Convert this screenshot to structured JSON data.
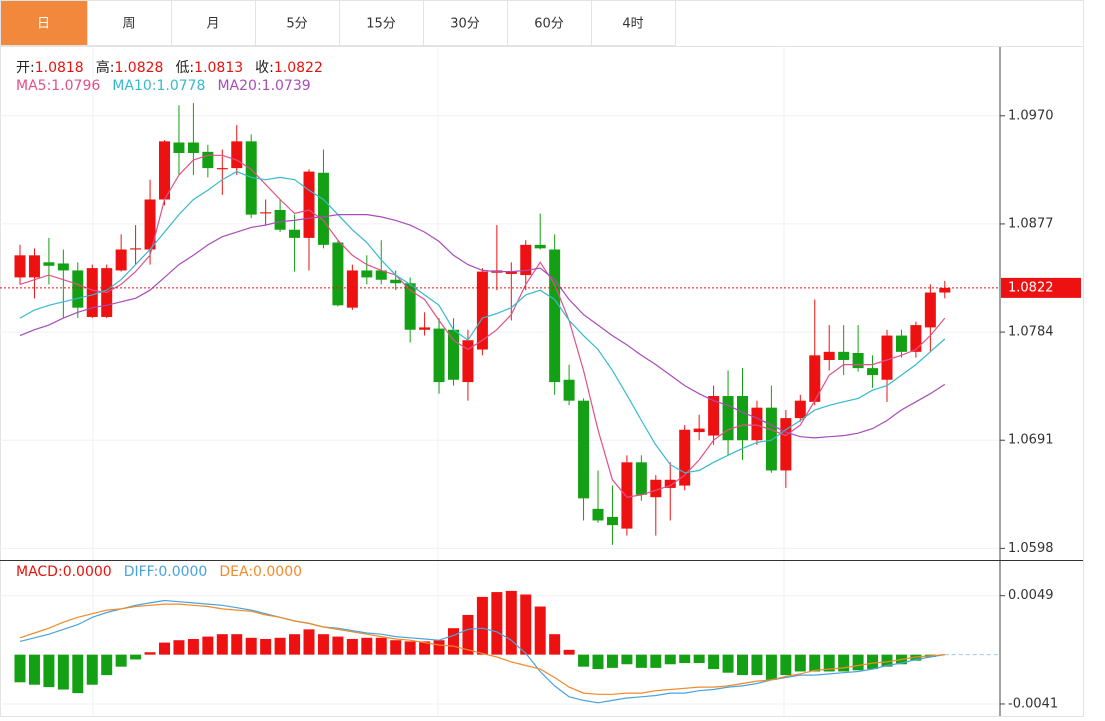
{
  "tabs": [
    {
      "label": "日",
      "active": true
    },
    {
      "label": "周",
      "active": false
    },
    {
      "label": "月",
      "active": false
    },
    {
      "label": "5分",
      "active": false
    },
    {
      "label": "15分",
      "active": false
    },
    {
      "label": "30分",
      "active": false
    },
    {
      "label": "60分",
      "active": false
    },
    {
      "label": "4时",
      "active": false
    }
  ],
  "chart_data": [
    {
      "type": "candlestick",
      "ohlc_labels": [
        "开:",
        "高:",
        "低:",
        "收:"
      ],
      "up_color": "#ee1111",
      "down_color": "#14a014",
      "label_color": "#e8120c",
      "open": [
        1.0831,
        1.0831,
        1.0844,
        1.0843,
        1.0837,
        1.0797,
        1.0797,
        1.0837,
        1.0855,
        1.0855,
        1.0898,
        1.0947,
        1.0947,
        1.0939,
        1.0924,
        1.0925,
        1.0948,
        1.0886,
        1.0889,
        1.0872,
        1.0865,
        1.0921,
        1.0861,
        1.0805,
        1.0837,
        1.0837,
        1.0829,
        1.0826,
        1.0786,
        1.0787,
        1.0786,
        1.0741,
        1.0769,
        1.0835,
        1.0834,
        1.0833,
        1.0859,
        1.0855,
        1.0743,
        1.0725,
        1.0632,
        1.0625,
        1.0615,
        1.0672,
        1.0642,
        1.065,
        1.0652,
        1.0698,
        1.0695,
        1.0729,
        1.0729,
        1.0691,
        1.0719,
        1.0665,
        1.071,
        1.0724,
        1.076,
        1.0767,
        1.0766,
        1.0753,
        1.0743,
        1.0781,
        1.0767,
        1.0788,
        1.0818
      ],
      "high": [
        1.0859,
        1.0856,
        1.0865,
        1.0855,
        1.0844,
        1.0842,
        1.0842,
        1.0868,
        1.0876,
        1.0915,
        1.0949,
        1.0979,
        1.0981,
        1.0945,
        1.0941,
        1.0962,
        1.0954,
        1.0898,
        1.0898,
        1.0885,
        1.0924,
        1.0941,
        1.0863,
        1.0842,
        1.085,
        1.0863,
        1.0837,
        1.0831,
        1.0801,
        1.0796,
        1.0796,
        1.0786,
        1.0839,
        1.0876,
        1.0844,
        1.0863,
        1.0886,
        1.0868,
        1.0756,
        1.0727,
        1.0665,
        1.0652,
        1.0678,
        1.0678,
        1.0661,
        1.0672,
        1.0704,
        1.0713,
        1.0738,
        1.0751,
        1.0753,
        1.0725,
        1.0738,
        1.0717,
        1.073,
        1.0812,
        1.079,
        1.079,
        1.079,
        1.0764,
        1.0786,
        1.0786,
        1.0793,
        1.0825,
        1.0828
      ],
      "low": [
        1.0825,
        1.0813,
        1.0825,
        1.0796,
        1.0796,
        1.0796,
        1.0796,
        1.0836,
        1.0842,
        1.0842,
        1.0893,
        1.0919,
        1.0919,
        1.0917,
        1.0902,
        1.0919,
        1.0882,
        1.0876,
        1.087,
        1.0836,
        1.0837,
        1.0856,
        1.0806,
        1.0803,
        1.0825,
        1.0825,
        1.082,
        1.0775,
        1.0781,
        1.0731,
        1.0738,
        1.0725,
        1.0764,
        1.082,
        1.0794,
        1.082,
        1.0855,
        1.073,
        1.0721,
        1.0622,
        1.062,
        1.0601,
        1.0609,
        1.0639,
        1.0609,
        1.0622,
        1.0648,
        1.0691,
        1.0687,
        1.0678,
        1.0674,
        1.0687,
        1.0663,
        1.065,
        1.0707,
        1.0721,
        1.0751,
        1.0747,
        1.075,
        1.0736,
        1.0724,
        1.0762,
        1.0762,
        1.0767,
        1.0813
      ],
      "close": [
        1.085,
        1.085,
        1.0841,
        1.0837,
        1.0805,
        1.0839,
        1.0839,
        1.0855,
        1.0856,
        1.0898,
        1.0948,
        1.0938,
        1.0938,
        1.0925,
        1.0925,
        1.0948,
        1.0885,
        1.0887,
        1.0872,
        1.0865,
        1.0922,
        1.0859,
        1.0807,
        1.0837,
        1.0831,
        1.0829,
        1.0826,
        1.0786,
        1.0788,
        1.0741,
        1.0743,
        1.0777,
        1.0836,
        1.0837,
        1.0836,
        1.0859,
        1.0856,
        1.0741,
        1.0725,
        1.0641,
        1.0622,
        1.0618,
        1.0672,
        1.0644,
        1.0657,
        1.0657,
        1.07,
        1.0701,
        1.0729,
        1.0691,
        1.0691,
        1.0719,
        1.0665,
        1.071,
        1.0725,
        1.0764,
        1.0767,
        1.076,
        1.0753,
        1.0747,
        1.0781,
        1.0767,
        1.079,
        1.0818,
        1.0822
      ],
      "series": [
        {
          "name": "MA5:",
          "color": "#e0508a",
          "values": [
            1.0825,
            1.0829,
            1.0833,
            1.0829,
            1.0825,
            1.082,
            1.0818,
            1.0825,
            1.0836,
            1.085,
            1.0898,
            1.0919,
            1.0932,
            1.0936,
            1.0936,
            1.0932,
            1.0924,
            1.0911,
            1.0898,
            1.0886,
            1.0889,
            1.088,
            1.0863,
            1.085,
            1.0842,
            1.0837,
            1.0833,
            1.082,
            1.0812,
            1.0794,
            1.0777,
            1.0769,
            1.0777,
            1.0786,
            1.0799,
            1.0825,
            1.0844,
            1.0825,
            1.0794,
            1.0751,
            1.07,
            1.0657,
            1.0642,
            1.0644,
            1.0648,
            1.0652,
            1.0661,
            1.0674,
            1.0691,
            1.07,
            1.0704,
            1.0704,
            1.07,
            1.0695,
            1.0704,
            1.0725,
            1.0747,
            1.0756,
            1.0756,
            1.0756,
            1.076,
            1.0764,
            1.0769,
            1.0781,
            1.0796
          ]
        },
        {
          "name": "MA10:",
          "color": "#36b9cc",
          "values": [
            1.0796,
            1.0803,
            1.0807,
            1.081,
            1.0813,
            1.0816,
            1.082,
            1.0829,
            1.0842,
            1.0855,
            1.087,
            1.0885,
            1.0898,
            1.0906,
            1.0915,
            1.0922,
            1.0917,
            1.0915,
            1.0917,
            1.0915,
            1.0906,
            1.0898,
            1.0885,
            1.0872,
            1.0861,
            1.0846,
            1.0833,
            1.0825,
            1.0816,
            1.0807,
            1.0786,
            1.0777,
            1.0796,
            1.08,
            1.0805,
            1.0816,
            1.082,
            1.0812,
            1.0794,
            1.0781,
            1.0769,
            1.0751,
            1.073,
            1.0708,
            1.0687,
            1.067,
            1.0663,
            1.0665,
            1.0672,
            1.0678,
            1.0684,
            1.0689,
            1.0691,
            1.07,
            1.0708,
            1.0717,
            1.0721,
            1.0724,
            1.0727,
            1.0734,
            1.0738,
            1.0747,
            1.0756,
            1.0767,
            1.0778
          ]
        },
        {
          "name": "MA20:",
          "color": "#a84cb8",
          "values": [
            1.0781,
            1.0786,
            1.079,
            1.0796,
            1.0801,
            1.0805,
            1.0807,
            1.081,
            1.0813,
            1.082,
            1.0831,
            1.0842,
            1.085,
            1.0859,
            1.0866,
            1.087,
            1.0874,
            1.0876,
            1.0879,
            1.088,
            1.0882,
            1.0883,
            1.0885,
            1.0885,
            1.0885,
            1.0883,
            1.088,
            1.0876,
            1.087,
            1.0862,
            1.085,
            1.0842,
            1.0837,
            1.0836,
            1.0836,
            1.0837,
            1.0839,
            1.0829,
            1.0812,
            1.0799,
            1.079,
            1.0781,
            1.0773,
            1.0764,
            1.0756,
            1.0747,
            1.0738,
            1.0731,
            1.0725,
            1.0721,
            1.0715,
            1.071,
            1.0704,
            1.0698,
            1.0694,
            1.0693,
            1.0694,
            1.0695,
            1.0697,
            1.0701,
            1.0708,
            1.0717,
            1.0724,
            1.0731,
            1.0739
          ]
        }
      ],
      "ylim": [
        1.0588,
        1.103
      ],
      "yticks": [
        {
          "value": 1.097,
          "label": "1.0970"
        },
        1.0877,
        1.0784,
        1.0691,
        1.0598
      ],
      "grid": true
    },
    {
      "type": "macd",
      "histogram": {
        "name": "MACD:",
        "color": "#e8120c",
        "up_color": "#ee1111",
        "down_color": "#14a014",
        "current": {
          "value": 0,
          "label": "0.0000"
        },
        "values": [
          -0.0023,
          -0.0025,
          -0.0027,
          -0.0029,
          -0.0032,
          -0.0025,
          -0.0017,
          -0.001,
          -0.0004,
          0.0002,
          0.001,
          0.0012,
          0.0013,
          0.0015,
          0.0017,
          0.0017,
          0.0014,
          0.0013,
          0.0014,
          0.0017,
          0.0021,
          0.0017,
          0.0015,
          0.0013,
          0.0014,
          0.0014,
          0.0012,
          0.0011,
          0.0011,
          0.0012,
          0.0022,
          0.0033,
          0.0048,
          0.0052,
          0.0053,
          0.005,
          0.004,
          0.0017,
          0.0004,
          -0.001,
          -0.0012,
          -0.0011,
          -0.0008,
          -0.0011,
          -0.0011,
          -0.0008,
          -0.0007,
          -0.0007,
          -0.0012,
          -0.0015,
          -0.0017,
          -0.0017,
          -0.0021,
          -0.0017,
          -0.0014,
          -0.0014,
          -0.0014,
          -0.0014,
          -0.0013,
          -0.0012,
          -0.001,
          -0.0008,
          -0.0005,
          -0.0002,
          0
        ]
      },
      "series": [
        {
          "name": "DIFF:",
          "color": "#4aa3df",
          "current": {
            "value": 0,
            "label": "0.0000"
          },
          "values": [
            0.0011,
            0.0014,
            0.0017,
            0.0021,
            0.0025,
            0.0031,
            0.0035,
            0.0038,
            0.0041,
            0.0043,
            0.0045,
            0.0044,
            0.0043,
            0.0042,
            0.0041,
            0.0039,
            0.0037,
            0.0034,
            0.0031,
            0.0028,
            0.0026,
            0.0023,
            0.0022,
            0.002,
            0.0018,
            0.0017,
            0.0015,
            0.0014,
            0.0013,
            0.0012,
            0.0016,
            0.0021,
            0.0022,
            0.0019,
            0.0012,
            0.0001,
            -0.0014,
            -0.0026,
            -0.0035,
            -0.0038,
            -0.004,
            -0.0038,
            -0.0036,
            -0.0035,
            -0.0034,
            -0.0032,
            -0.0032,
            -0.003,
            -0.0029,
            -0.0027,
            -0.0026,
            -0.0024,
            -0.0021,
            -0.0019,
            -0.0017,
            -0.0017,
            -0.0016,
            -0.0015,
            -0.0014,
            -0.0012,
            -0.0009,
            -0.0007,
            -0.0004,
            -0.0002,
            0
          ]
        },
        {
          "name": "DEA:",
          "color": "#f08a2a",
          "current": {
            "value": 0,
            "label": "0.0000"
          },
          "values": [
            0.0014,
            0.0018,
            0.0022,
            0.0027,
            0.0031,
            0.0034,
            0.0037,
            0.0038,
            0.004,
            0.0041,
            0.0042,
            0.0042,
            0.0041,
            0.004,
            0.0038,
            0.0037,
            0.0036,
            0.0033,
            0.0031,
            0.0028,
            0.0026,
            0.0023,
            0.0021,
            0.0019,
            0.0017,
            0.0015,
            0.0013,
            0.0012,
            0.001,
            0.0008,
            0.0007,
            0.0004,
            0.0001,
            -0.0002,
            -0.0006,
            -0.0009,
            -0.0012,
            -0.0019,
            -0.0027,
            -0.0032,
            -0.0033,
            -0.0033,
            -0.0032,
            -0.0032,
            -0.003,
            -0.0029,
            -0.0028,
            -0.0027,
            -0.0027,
            -0.0026,
            -0.0024,
            -0.0022,
            -0.0021,
            -0.0018,
            -0.0016,
            -0.0013,
            -0.0012,
            -0.0011,
            -0.0009,
            -0.0007,
            -0.0006,
            -0.0004,
            -0.0002,
            -0.0001,
            0
          ]
        }
      ],
      "ylim": [
        -0.0051,
        0.0077
      ],
      "yticks": [
        0.0049,
        -0.0041
      ],
      "grid": true
    }
  ]
}
